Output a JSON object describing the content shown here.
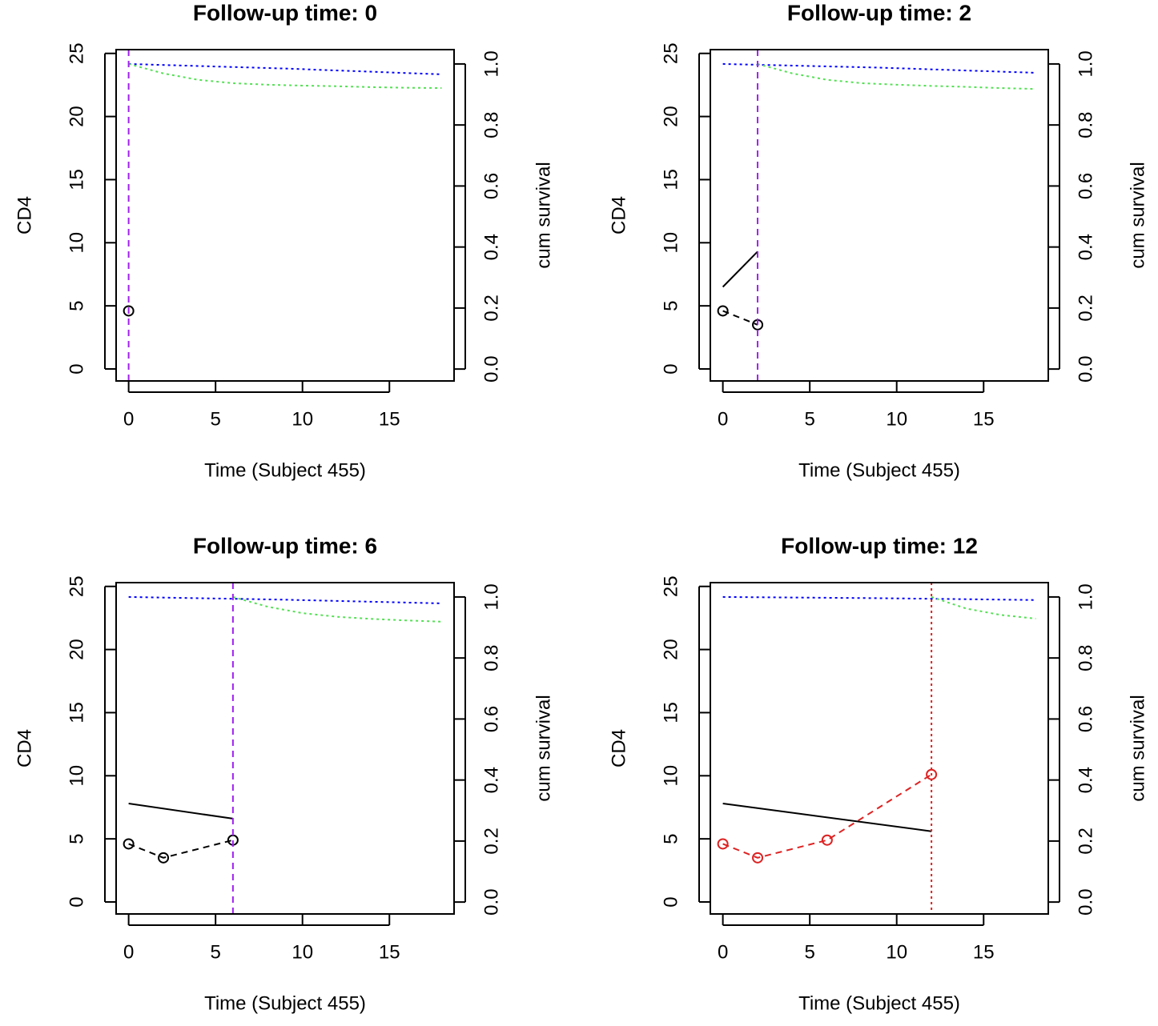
{
  "chart_data": [
    {
      "type": "line",
      "title": "Follow-up time: 0",
      "xlabel": "Time (Subject 455)",
      "ylabel": "CD4",
      "y2label": "cum survival",
      "xlim": [
        -0.72,
        18.72
      ],
      "ylim": [
        -0.95,
        25.3
      ],
      "y2lim": [
        -0.039,
        1.047
      ],
      "xticks": [
        0,
        5,
        10,
        15
      ],
      "yticks": [
        0,
        5,
        10,
        15,
        20,
        25
      ],
      "y2ticks": [
        {
          "value": 0,
          "label": "0.0"
        },
        0.2,
        0.4,
        0.6,
        0.8,
        {
          "value": 1,
          "label": "1.0"
        }
      ],
      "vline": {
        "x": 0,
        "color": "#a020f0",
        "dash": "8,6"
      },
      "series": [
        {
          "x": [
            0
          ],
          "values": [
            4.6
          ],
          "color": "#000000",
          "dash": "8,6",
          "marker": true
        },
        {
          "x": [
            0,
            9,
            18
          ],
          "values": [
            1.0,
            0.985,
            0.966
          ],
          "color": "#0000ff",
          "dash": "3,4",
          "axis": "y2"
        },
        {
          "x": [
            0,
            2,
            4,
            6,
            8,
            10,
            12,
            14,
            16,
            18
          ],
          "values": [
            1.0,
            0.969,
            0.948,
            0.937,
            0.932,
            0.929,
            0.927,
            0.924,
            0.922,
            0.921
          ],
          "color": "#55e055",
          "dash": "3,4",
          "axis": "y2"
        }
      ]
    },
    {
      "type": "line",
      "title": "Follow-up time: 2",
      "xlabel": "Time (Subject 455)",
      "ylabel": "CD4",
      "y2label": "cum survival",
      "xlim": [
        -0.72,
        18.72
      ],
      "ylim": [
        -0.95,
        25.3
      ],
      "y2lim": [
        -0.039,
        1.047
      ],
      "xticks": [
        0,
        5,
        10,
        15
      ],
      "yticks": [
        0,
        5,
        10,
        15,
        20,
        25
      ],
      "y2ticks": [
        {
          "value": 0,
          "label": "0.0"
        },
        0.2,
        0.4,
        0.6,
        0.8,
        {
          "value": 1,
          "label": "1.0"
        }
      ],
      "vline": {
        "x": 2,
        "color": "#a020f0",
        "dash": "8,6"
      },
      "series": [
        {
          "x": [
            0,
            2
          ],
          "values": [
            4.6,
            3.5
          ],
          "color": "#000000",
          "dash": "8,6",
          "marker": true
        },
        {
          "x": [
            0,
            2
          ],
          "values": [
            6.5,
            9.3
          ],
          "color": "#000000"
        },
        {
          "x": [
            0,
            9,
            18
          ],
          "values": [
            1.0,
            0.988,
            0.971
          ],
          "color": "#0000ff",
          "dash": "3,4",
          "axis": "y2"
        },
        {
          "x": [
            2,
            4,
            6,
            8,
            10,
            12,
            14,
            16,
            18
          ],
          "values": [
            1.0,
            0.969,
            0.948,
            0.937,
            0.932,
            0.928,
            0.925,
            0.921,
            0.918
          ],
          "color": "#55e055",
          "dash": "3,4",
          "axis": "y2"
        }
      ]
    },
    {
      "type": "line",
      "title": "Follow-up time: 6",
      "xlabel": "Time (Subject 455)",
      "ylabel": "CD4",
      "y2label": "cum survival",
      "xlim": [
        -0.72,
        18.72
      ],
      "ylim": [
        -0.95,
        25.3
      ],
      "y2lim": [
        -0.039,
        1.047
      ],
      "xticks": [
        0,
        5,
        10,
        15
      ],
      "yticks": [
        0,
        5,
        10,
        15,
        20,
        25
      ],
      "y2ticks": [
        {
          "value": 0,
          "label": "0.0"
        },
        0.2,
        0.4,
        0.6,
        0.8,
        {
          "value": 1,
          "label": "1.0"
        }
      ],
      "vline": {
        "x": 6,
        "color": "#a020f0",
        "dash": "8,6"
      },
      "series": [
        {
          "x": [
            0,
            2,
            6
          ],
          "values": [
            4.6,
            3.5,
            4.9
          ],
          "color": "#000000",
          "dash": "8,6",
          "marker": true
        },
        {
          "x": [
            0,
            6
          ],
          "values": [
            7.8,
            6.6
          ],
          "color": "#000000"
        },
        {
          "x": [
            0,
            9,
            18
          ],
          "values": [
            1.0,
            0.991,
            0.979
          ],
          "color": "#0000ff",
          "dash": "3,4",
          "axis": "y2"
        },
        {
          "x": [
            6,
            8,
            10,
            12,
            14,
            16,
            18
          ],
          "values": [
            1.0,
            0.968,
            0.947,
            0.935,
            0.928,
            0.923,
            0.919
          ],
          "color": "#55e055",
          "dash": "3,4",
          "axis": "y2"
        }
      ]
    },
    {
      "type": "line",
      "title": "Follow-up time: 12",
      "xlabel": "Time (Subject 455)",
      "ylabel": "CD4",
      "y2label": "cum survival",
      "xlim": [
        -0.72,
        18.72
      ],
      "ylim": [
        -0.95,
        25.3
      ],
      "y2lim": [
        -0.039,
        1.047
      ],
      "xticks": [
        0,
        5,
        10,
        15
      ],
      "yticks": [
        0,
        5,
        10,
        15,
        20,
        25
      ],
      "y2ticks": [
        {
          "value": 0,
          "label": "0.0"
        },
        0.2,
        0.4,
        0.6,
        0.8,
        {
          "value": 1,
          "label": "1.0"
        }
      ],
      "vline": {
        "x": 12,
        "color": "#dd2222",
        "dash": "3,4"
      },
      "series": [
        {
          "x": [
            0,
            2,
            6,
            12
          ],
          "values": [
            4.6,
            3.5,
            4.9,
            10.1
          ],
          "color": "#dd2222",
          "dash": "8,6",
          "marker": true
        },
        {
          "x": [
            0,
            12
          ],
          "values": [
            7.8,
            5.6
          ],
          "color": "#000000"
        },
        {
          "x": [
            0,
            9,
            18
          ],
          "values": [
            1.0,
            0.996,
            0.99
          ],
          "color": "#0000ff",
          "dash": "3,4",
          "axis": "y2"
        },
        {
          "x": [
            12,
            14,
            16,
            18
          ],
          "values": [
            1.0,
            0.962,
            0.941,
            0.929
          ],
          "color": "#55e055",
          "dash": "3,4",
          "axis": "y2"
        }
      ]
    }
  ]
}
